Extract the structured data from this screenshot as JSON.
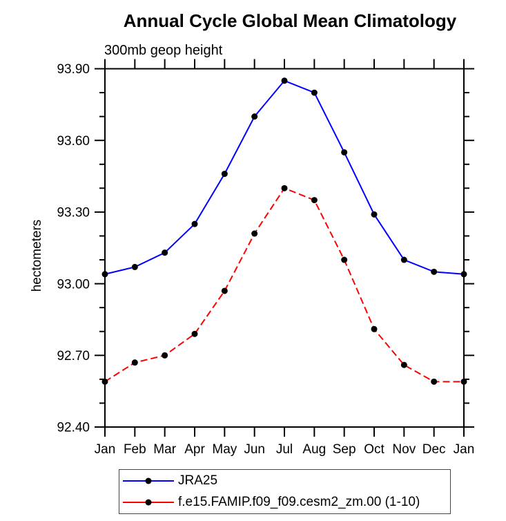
{
  "page": {
    "title": "Annual Cycle Global Mean Climatology",
    "subtitle": "300mb geop height"
  },
  "chart_data": {
    "type": "line",
    "title": "Annual Cycle Global Mean Climatology",
    "subtitle": "300mb geop height",
    "xlabel": "",
    "ylabel": "hectometers",
    "categories": [
      "Jan",
      "Feb",
      "Mar",
      "Apr",
      "May",
      "Jun",
      "Jul",
      "Aug",
      "Sep",
      "Oct",
      "Nov",
      "Dec",
      "Jan"
    ],
    "series": [
      {
        "name": "JRA25",
        "color": "#0000ff",
        "line_style": "solid",
        "dash": "none",
        "marker": "filled-black-circle",
        "values": [
          93.04,
          93.07,
          93.13,
          93.25,
          93.46,
          93.7,
          93.85,
          93.8,
          93.55,
          93.29,
          93.1,
          93.05,
          93.04
        ]
      },
      {
        "name": "f.e15.FAMIP.f09_f09.cesm2_zm.00 (1-10)",
        "color": "#ff0000",
        "line_style": "dashed",
        "dash": "10,5",
        "marker": "filled-black-circle",
        "values": [
          92.59,
          92.67,
          92.7,
          92.79,
          92.97,
          93.21,
          93.4,
          93.35,
          93.1,
          92.81,
          92.66,
          92.59,
          92.59
        ]
      }
    ],
    "ylim": [
      92.4,
      93.9
    ],
    "ytick_major_step": 0.3,
    "ytick_minor_step": 0.1,
    "ytick_labels": [
      "93.90",
      "93.60",
      "93.30",
      "93.00",
      "92.70",
      "92.40"
    ],
    "grid": false,
    "frame": "closed-box-with-outward-ticks",
    "legend_position": "bottom-left-outside"
  },
  "colors": {
    "axis": "#000000",
    "marker": "#000000",
    "text": "#000000",
    "legend_border": "#444444",
    "background": "#ffffff"
  }
}
